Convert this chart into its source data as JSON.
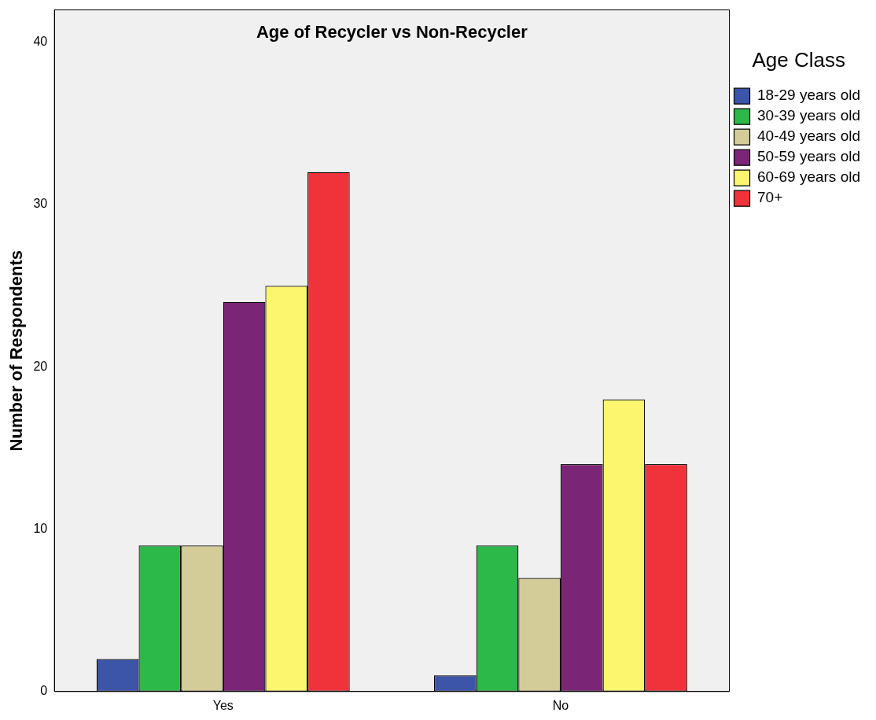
{
  "chart_data": {
    "type": "bar",
    "title": "Age of Recycler vs Non-Recycler",
    "ylabel": "Number of Respondents",
    "legend_title": "Age Class",
    "categories": [
      "Yes",
      "No"
    ],
    "series": [
      {
        "name": "18-29 years old",
        "color": "#3d55a8",
        "values": [
          2,
          1
        ]
      },
      {
        "name": "30-39 years old",
        "color": "#2db84a",
        "values": [
          9,
          9
        ]
      },
      {
        "name": "40-49 years old",
        "color": "#d3cc98",
        "values": [
          9,
          7
        ]
      },
      {
        "name": "50-59 years old",
        "color": "#7b2577",
        "values": [
          24,
          14
        ]
      },
      {
        "name": "60-69 years old",
        "color": "#fbf66e",
        "values": [
          25,
          18
        ]
      },
      {
        "name": "70+",
        "color": "#f0323a",
        "values": [
          32,
          14
        ]
      }
    ],
    "ylim": [
      0,
      42
    ],
    "yticks": [
      0,
      10,
      20,
      30,
      40
    ],
    "grid": false,
    "legend": "right"
  }
}
